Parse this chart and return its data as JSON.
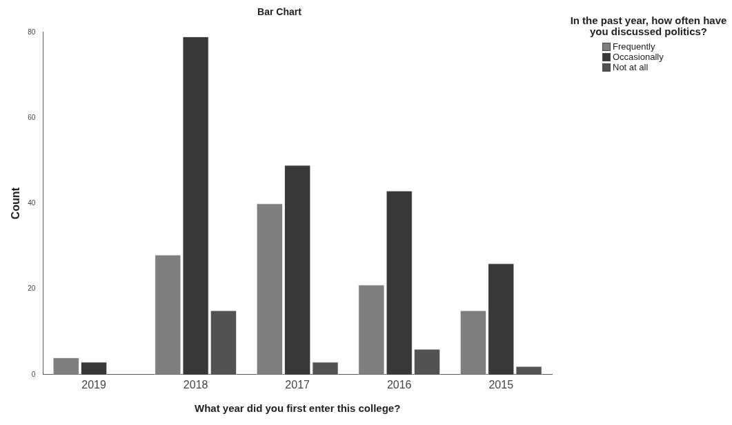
{
  "chart_data": {
    "type": "bar",
    "title": "Bar Chart",
    "xlabel": "What year did you first enter this college?",
    "ylabel": "Count",
    "legend_title": "In the past year, how often have you discussed politics?",
    "categories": [
      "2019",
      "2018",
      "2017",
      "2016",
      "2015"
    ],
    "series": [
      {
        "name": "Frequently",
        "color": "#7f7f7f",
        "values": [
          4,
          28,
          40,
          21,
          15
        ]
      },
      {
        "name": "Occasionally",
        "color": "#383838",
        "values": [
          3,
          79,
          49,
          43,
          26
        ]
      },
      {
        "name": "Not at all",
        "color": "#525252",
        "values": [
          null,
          15,
          3,
          6,
          2
        ]
      }
    ],
    "ylim": [
      0,
      80
    ],
    "yticks": [
      0,
      20,
      40,
      60,
      80
    ],
    "grid": false,
    "legend": "top right"
  }
}
